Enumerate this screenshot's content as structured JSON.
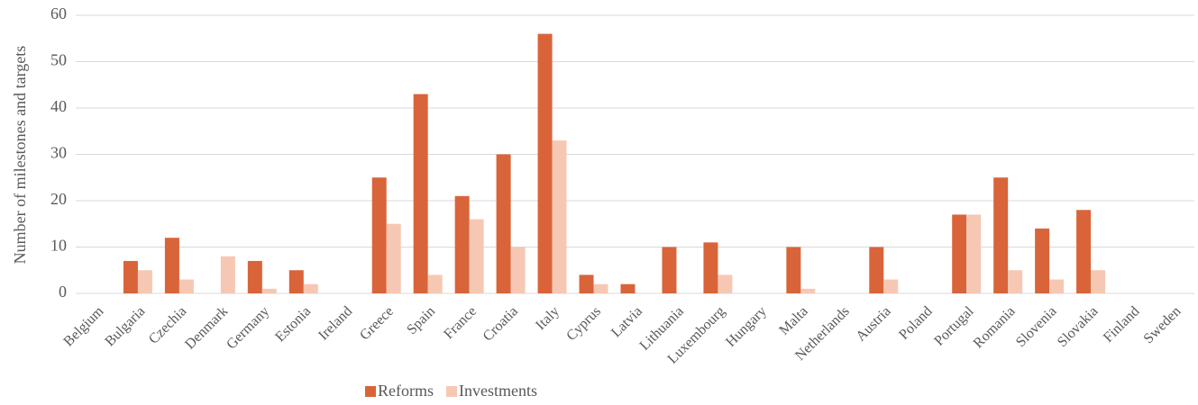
{
  "chart_data": {
    "type": "bar",
    "y_label": "Number of milestones and targets",
    "categories": [
      "Belgium",
      "Bulgaria",
      "Czechia",
      "Denmark",
      "Germany",
      "Estonia",
      "Ireland",
      "Greece",
      "Spain",
      "France",
      "Croatia",
      "Italy",
      "Cyprus",
      "Latvia",
      "Lithuania",
      "Luxembourg",
      "Hungary",
      "Malta",
      "Netherlands",
      "Austria",
      "Poland",
      "Portugal",
      "Romania",
      "Slovenia",
      "Slovakia",
      "Finland",
      "Sweden"
    ],
    "series": [
      {
        "name": "Reforms",
        "color": "#d9643a",
        "values": [
          0,
          7,
          12,
          0,
          7,
          5,
          0,
          25,
          43,
          21,
          30,
          56,
          4,
          2,
          10,
          11,
          0,
          10,
          0,
          10,
          0,
          17,
          25,
          14,
          18,
          0,
          0
        ]
      },
      {
        "name": "Investments",
        "color": "#f6c8b4",
        "values": [
          0,
          5,
          3,
          8,
          1,
          2,
          0,
          15,
          4,
          16,
          10,
          33,
          2,
          0,
          0,
          4,
          0,
          1,
          0,
          3,
          0,
          17,
          5,
          3,
          5,
          0,
          0
        ]
      }
    ],
    "ylim": [
      0,
      60
    ],
    "yticks": [
      0,
      10,
      20,
      30,
      40,
      50,
      60
    ],
    "grid": true,
    "legend": "bottom"
  }
}
